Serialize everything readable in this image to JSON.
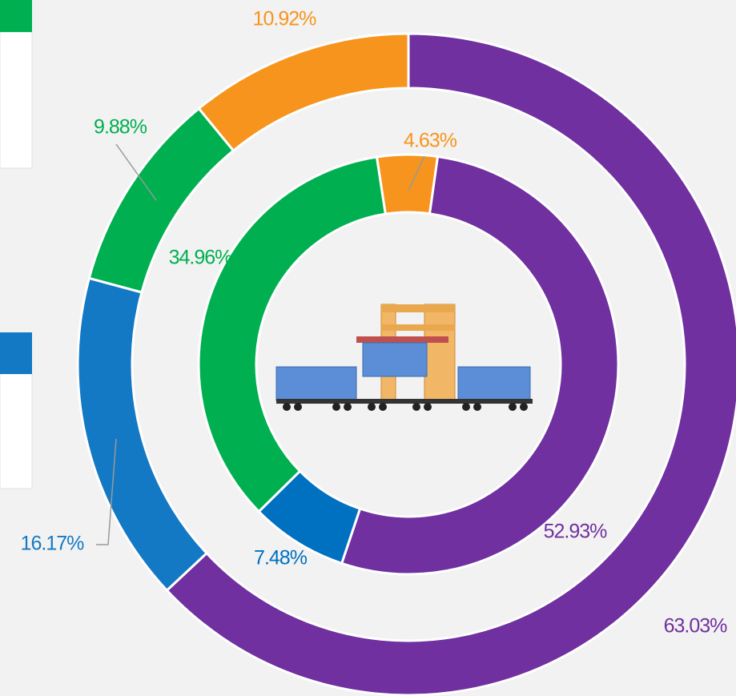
{
  "chart_data": {
    "type": "donut",
    "series": [
      {
        "colors": [
          "#7030a0",
          "#1479c4",
          "#00b050",
          "#f7941d"
        ],
        "values": [
          63.03,
          16.17,
          9.88,
          10.92
        ],
        "value_labels": [
          "63.03%",
          "16.17%",
          "9.88%",
          "10.92%"
        ]
      },
      {
        "colors": [
          "#7030a0",
          "#0070c0",
          "#00b050",
          "#f7941d"
        ],
        "values": [
          52.93,
          7.48,
          34.96,
          4.63
        ],
        "value_labels": [
          "52.93%",
          "7.48%",
          "34.96%",
          "4.63%"
        ]
      }
    ]
  }
}
